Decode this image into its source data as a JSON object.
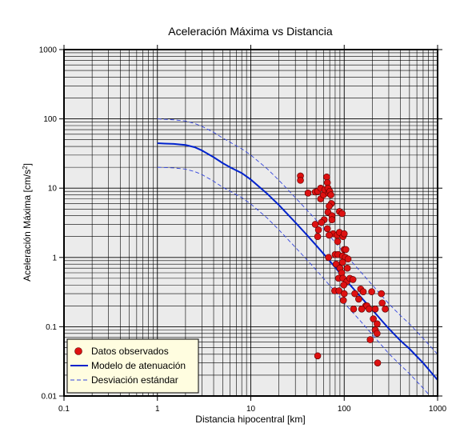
{
  "chart_data": {
    "type": "scatter",
    "title": "Aceleración Máxima vs Distancia",
    "xlabel": "Distancia hipocentral [km]",
    "ylabel_main": "Aceleración Máxima [cm/s",
    "ylabel_sup": "2",
    "ylabel_tail": "]",
    "xscale": "log",
    "yscale": "log",
    "xlim": [
      0.1,
      1000
    ],
    "ylim": [
      0.01,
      1000
    ],
    "grid": true,
    "legend_position": "bottom-left",
    "x_ticks": [
      {
        "value": 0.1,
        "label": "0.1"
      },
      {
        "value": 1,
        "label": "1"
      },
      {
        "value": 10,
        "label": "10"
      },
      {
        "value": 100,
        "label": "100"
      },
      {
        "value": 1000,
        "label": "1000"
      }
    ],
    "y_ticks": [
      {
        "value": 0.01,
        "label": "0.01"
      },
      {
        "value": 0.1,
        "label": "0.1"
      },
      {
        "value": 1,
        "label": "1"
      },
      {
        "value": 10,
        "label": "10"
      },
      {
        "value": 100,
        "label": "100"
      },
      {
        "value": 1000,
        "label": "1000"
      }
    ],
    "colors": {
      "background": "#ebebeb",
      "grid": "#000000",
      "points": "#dd1111",
      "model": "#0022cc",
      "deviation": "#3344dd",
      "legend_bg": "#fffde0"
    },
    "series": [
      {
        "name": "Datos observados",
        "style": "points",
        "points": [
          [
            34,
            15
          ],
          [
            34,
            13
          ],
          [
            41,
            8.5
          ],
          [
            49,
            8.8
          ],
          [
            52,
            9
          ],
          [
            56,
            10
          ],
          [
            56,
            7
          ],
          [
            60,
            8
          ],
          [
            62,
            9.5
          ],
          [
            65,
            14.5
          ],
          [
            66,
            12
          ],
          [
            67,
            10
          ],
          [
            68,
            8.5
          ],
          [
            70,
            9
          ],
          [
            72,
            8
          ],
          [
            73,
            6
          ],
          [
            69,
            5.5
          ],
          [
            67,
            4.5
          ],
          [
            74,
            4
          ],
          [
            74,
            3.5
          ],
          [
            61,
            3.5
          ],
          [
            57,
            3.2
          ],
          [
            49,
            3
          ],
          [
            53,
            2.5
          ],
          [
            66,
            2.6
          ],
          [
            76,
            2.2
          ],
          [
            69,
            2.1
          ],
          [
            84,
            2.1
          ],
          [
            89,
            2.3
          ],
          [
            97,
            2.0
          ],
          [
            100,
            2.2
          ],
          [
            89,
            4.6
          ],
          [
            95,
            4.3
          ],
          [
            52,
            2
          ],
          [
            85,
            1.7
          ],
          [
            100,
            1.3
          ],
          [
            104,
            1.3
          ],
          [
            80,
            1.1
          ],
          [
            86,
            1.1
          ],
          [
            96,
            1.05
          ],
          [
            103,
            1.0
          ],
          [
            110,
            0.95
          ],
          [
            96,
            0.85
          ],
          [
            108,
            0.7
          ],
          [
            68,
            1.0
          ],
          [
            82,
            0.8
          ],
          [
            90,
            0.7
          ],
          [
            94,
            0.6
          ],
          [
            87,
            0.5
          ],
          [
            97,
            0.5
          ],
          [
            107,
            0.45
          ],
          [
            115,
            0.5
          ],
          [
            124,
            0.48
          ],
          [
            99,
            0.4
          ],
          [
            79,
            0.33
          ],
          [
            88,
            0.33
          ],
          [
            100,
            0.3
          ],
          [
            130,
            0.3
          ],
          [
            150,
            0.35
          ],
          [
            160,
            0.32
          ],
          [
            197,
            0.32
          ],
          [
            143,
            0.25
          ],
          [
            98,
            0.24
          ],
          [
            126,
            0.18
          ],
          [
            170,
            0.2
          ],
          [
            175,
            0.2
          ],
          [
            185,
            0.18
          ],
          [
            215,
            0.18
          ],
          [
            250,
            0.3
          ],
          [
            255,
            0.22
          ],
          [
            275,
            0.18
          ],
          [
            154,
            0.18
          ],
          [
            205,
            0.13
          ],
          [
            225,
            0.11
          ],
          [
            215,
            0.09
          ],
          [
            225,
            0.08
          ],
          [
            190,
            0.065
          ],
          [
            52,
            0.038
          ],
          [
            228,
            0.03
          ]
        ]
      },
      {
        "name": "Modelo de atenuación",
        "style": "solid",
        "points": [
          [
            1,
            44.5
          ],
          [
            1.2,
            44
          ],
          [
            1.5,
            43.5
          ],
          [
            2,
            42
          ],
          [
            2.5,
            39
          ],
          [
            3,
            35
          ],
          [
            4,
            28
          ],
          [
            5,
            23
          ],
          [
            6,
            20
          ],
          [
            8,
            16.5
          ],
          [
            10,
            13.3
          ],
          [
            15,
            8.3
          ],
          [
            20,
            5.7
          ],
          [
            30,
            3.2
          ],
          [
            40,
            2.1
          ],
          [
            50,
            1.5
          ],
          [
            60,
            1.13
          ],
          [
            80,
            0.72
          ],
          [
            100,
            0.5
          ],
          [
            150,
            0.27
          ],
          [
            200,
            0.175
          ],
          [
            300,
            0.094
          ],
          [
            400,
            0.063
          ],
          [
            500,
            0.048
          ],
          [
            700,
            0.03
          ],
          [
            1000,
            0.017
          ]
        ]
      },
      {
        "name": "Desviación estándar",
        "style": "dashed",
        "points_upper": [
          [
            1,
            100
          ],
          [
            1.5,
            97
          ],
          [
            2,
            93
          ],
          [
            2.5,
            86
          ],
          [
            3,
            78
          ],
          [
            4,
            64
          ],
          [
            5,
            53
          ],
          [
            6,
            46
          ],
          [
            8,
            37
          ],
          [
            10,
            30
          ],
          [
            15,
            19
          ],
          [
            20,
            13
          ],
          [
            30,
            7.3
          ],
          [
            40,
            4.8
          ],
          [
            50,
            3.5
          ],
          [
            60,
            2.6
          ],
          [
            80,
            1.65
          ],
          [
            100,
            1.15
          ],
          [
            150,
            0.62
          ],
          [
            200,
            0.4
          ],
          [
            300,
            0.215
          ],
          [
            400,
            0.145
          ],
          [
            500,
            0.11
          ],
          [
            700,
            0.068
          ],
          [
            1000,
            0.04
          ]
        ],
        "points_lower": [
          [
            1,
            20
          ],
          [
            1.5,
            19.6
          ],
          [
            2,
            18.8
          ],
          [
            2.5,
            17.4
          ],
          [
            3,
            15.7
          ],
          [
            4,
            12.6
          ],
          [
            5,
            10.3
          ],
          [
            6,
            9
          ],
          [
            8,
            7.3
          ],
          [
            10,
            5.9
          ],
          [
            15,
            3.7
          ],
          [
            20,
            2.5
          ],
          [
            30,
            1.4
          ],
          [
            40,
            0.92
          ],
          [
            50,
            0.66
          ],
          [
            60,
            0.5
          ],
          [
            80,
            0.32
          ],
          [
            100,
            0.22
          ],
          [
            150,
            0.12
          ],
          [
            200,
            0.077
          ],
          [
            300,
            0.041
          ],
          [
            400,
            0.028
          ],
          [
            500,
            0.021
          ],
          [
            700,
            0.013
          ],
          [
            1000,
            0.0075
          ]
        ]
      }
    ]
  }
}
